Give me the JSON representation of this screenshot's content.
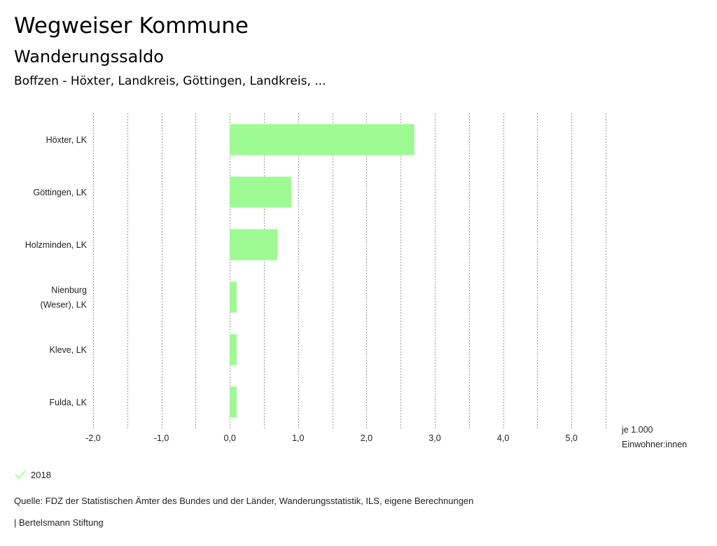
{
  "header": {
    "title": "Wegweiser Kommune",
    "subtitle": "Wanderungssaldo",
    "filter": "Boffzen - Höxter, Landkreis, Göttingen, Landkreis, ..."
  },
  "chart_data": {
    "type": "bar",
    "orientation": "horizontal",
    "categories": [
      "Höxter, LK",
      "Göttingen, LK",
      "Holzminden, LK",
      "Nienburg (Weser), LK",
      "Kleve, LK",
      "Fulda, LK"
    ],
    "category_lines": [
      [
        "Höxter, LK"
      ],
      [
        "Göttingen, LK"
      ],
      [
        "Holzminden, LK"
      ],
      [
        "Nienburg",
        "(Weser), LK"
      ],
      [
        "Kleve, LK"
      ],
      [
        "Fulda, LK"
      ]
    ],
    "series": [
      {
        "name": "2018",
        "values": [
          2.7,
          0.9,
          0.7,
          0.1,
          0.1,
          0.1
        ],
        "color": "#9efa93"
      }
    ],
    "xlim": [
      -2.0,
      5.5
    ],
    "xticks": [
      -2.0,
      -1.0,
      0.0,
      1.0,
      2.0,
      3.0,
      4.0,
      5.0
    ],
    "xtick_labels": [
      "-2,0",
      "-1,0",
      "0,0",
      "1,0",
      "2,0",
      "3,0",
      "4,0",
      "5,0"
    ],
    "grid_step": 0.5,
    "grid": true,
    "unit_label_lines": [
      "je 1.000",
      "Einwohner:innen"
    ]
  },
  "legend": {
    "label": "2018",
    "color": "#9efa93",
    "icon": "checkmark-icon"
  },
  "footer": {
    "source": "Quelle: FDZ der Statistischen Ämter des Bundes und der Länder, Wanderungsstatistik, ILS, eigene Berechnungen",
    "credit": "| Bertelsmann Stiftung"
  }
}
